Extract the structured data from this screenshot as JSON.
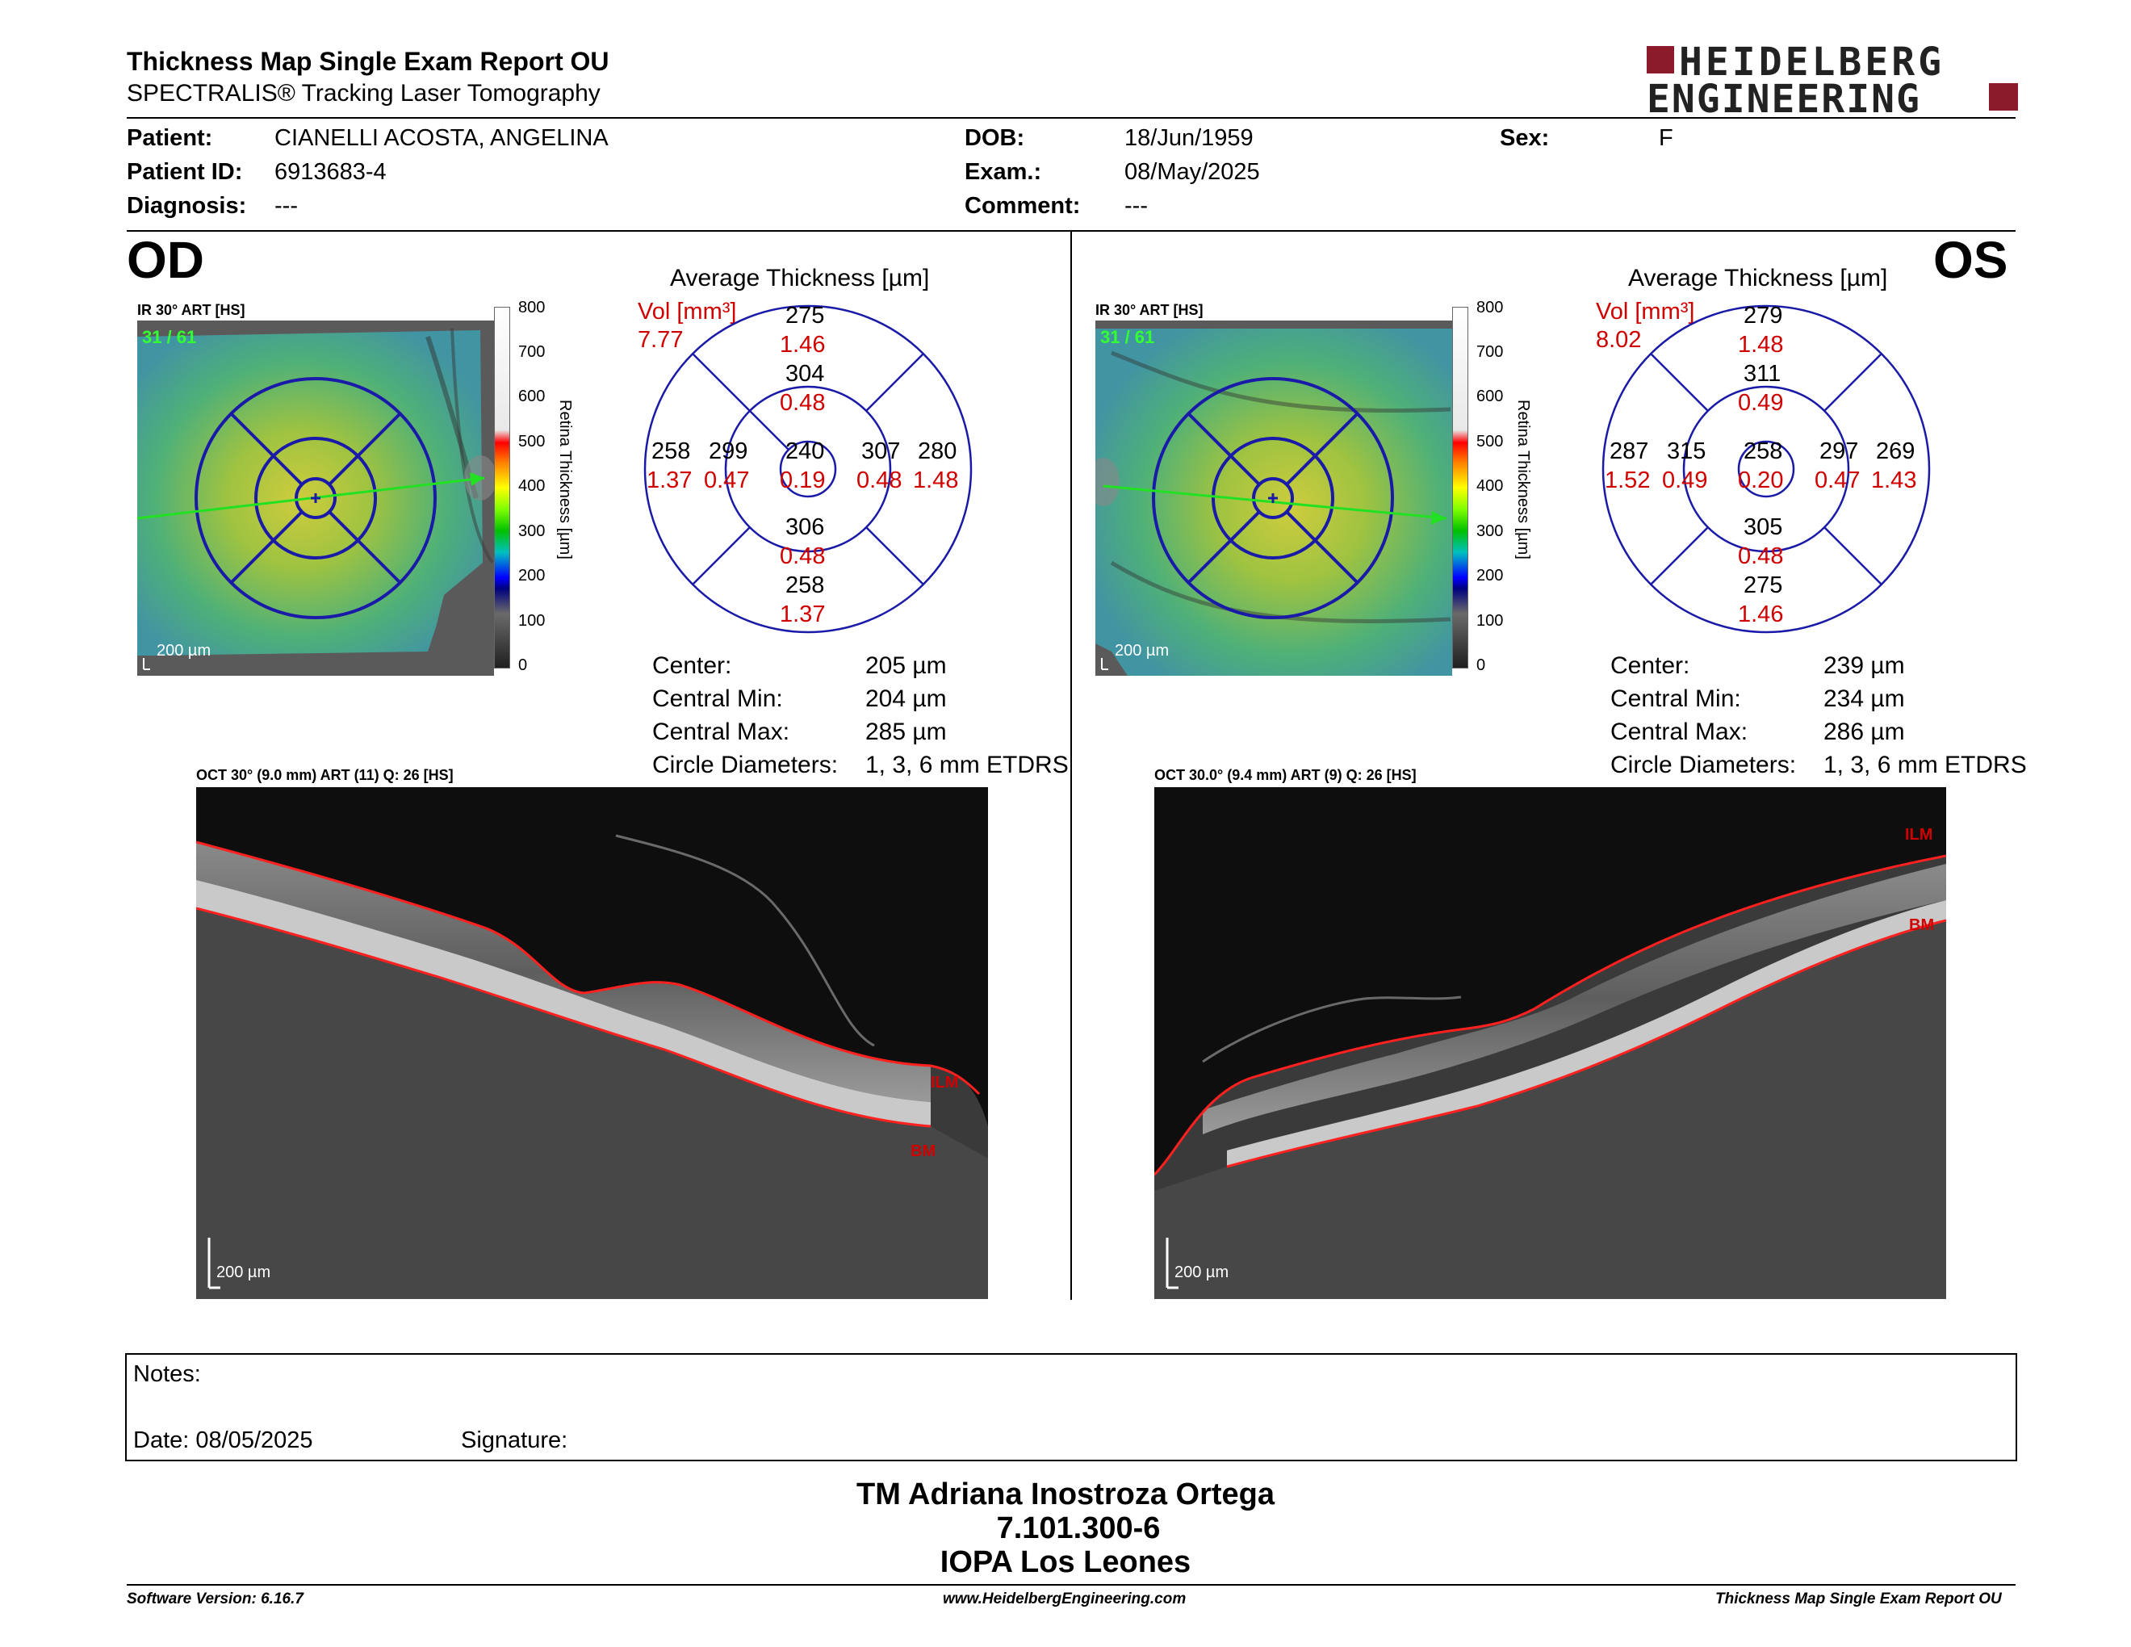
{
  "header": {
    "title": "Thickness Map Single Exam Report OU",
    "subtitle": "SPECTRALIS® Tracking Laser Tomography",
    "logo_line1": "HEIDELBERG",
    "logo_line2": "ENGINEERING",
    "brand_color": "#8b1a2b"
  },
  "patient": {
    "patient_label": "Patient:",
    "patient_value": "CIANELLI ACOSTA, ANGELINA",
    "id_label": "Patient ID:",
    "id_value": "6913683-4",
    "diagnosis_label": "Diagnosis:",
    "diagnosis_value": "---",
    "dob_label": "DOB:",
    "dob_value": "18/Jun/1959",
    "exam_label": "Exam.:",
    "exam_value": "08/May/2025",
    "comment_label": "Comment:",
    "comment_value": "---",
    "sex_label": "Sex:",
    "sex_value": "F"
  },
  "od": {
    "eye_label": "OD",
    "fundus_title": "IR 30° ART [HS]",
    "fundus_frames": "31 / 61",
    "fundus_scale": "200 µm",
    "colorbar_ticks": [
      "800",
      "700",
      "600",
      "500",
      "400",
      "300",
      "200",
      "100",
      "0"
    ],
    "colorbar_label": "Retina Thickness [µm]",
    "avg_title": "Average Thickness [µm]",
    "vol_label": "Vol [mm³]",
    "vol_value": "7.77",
    "etdrs": {
      "center": {
        "t": "240",
        "v": "0.19"
      },
      "inner_sup": {
        "t": "304",
        "v": "0.48"
      },
      "inner_inf": {
        "t": "306",
        "v": "0.48"
      },
      "inner_left": {
        "t": "299",
        "v": "0.47"
      },
      "inner_right": {
        "t": "307",
        "v": "0.48"
      },
      "outer_sup": {
        "t": "275",
        "v": "1.46"
      },
      "outer_inf": {
        "t": "258",
        "v": "1.37"
      },
      "outer_left": {
        "t": "258",
        "v": "1.37"
      },
      "outer_right": {
        "t": "280",
        "v": "1.48"
      }
    },
    "stats": [
      {
        "label": "Center:",
        "value": "205 µm"
      },
      {
        "label": "Central Min:",
        "value": "204 µm"
      },
      {
        "label": "Central Max:",
        "value": "285 µm"
      },
      {
        "label": "Circle Diameters:",
        "value": "1, 3, 6 mm ETDRS"
      }
    ],
    "oct_title": "OCT 30° (9.0 mm) ART (11) Q: 26 [HS]",
    "oct_scale": "200 µm",
    "ilm": "ILM",
    "bm": "BM"
  },
  "os": {
    "eye_label": "OS",
    "fundus_title": "IR 30° ART [HS]",
    "fundus_frames": "31 / 61",
    "fundus_scale": "200 µm",
    "colorbar_ticks": [
      "800",
      "700",
      "600",
      "500",
      "400",
      "300",
      "200",
      "100",
      "0"
    ],
    "colorbar_label": "Retina Thickness [µm]",
    "avg_title": "Average Thickness [µm]",
    "vol_label": "Vol [mm³]",
    "vol_value": "8.02",
    "etdrs": {
      "center": {
        "t": "258",
        "v": "0.20"
      },
      "inner_sup": {
        "t": "311",
        "v": "0.49"
      },
      "inner_inf": {
        "t": "305",
        "v": "0.48"
      },
      "inner_left": {
        "t": "315",
        "v": "0.49"
      },
      "inner_right": {
        "t": "297",
        "v": "0.47"
      },
      "outer_sup": {
        "t": "279",
        "v": "1.48"
      },
      "outer_inf": {
        "t": "275",
        "v": "1.46"
      },
      "outer_left": {
        "t": "287",
        "v": "1.52"
      },
      "outer_right": {
        "t": "269",
        "v": "1.43"
      }
    },
    "stats": [
      {
        "label": "Center:",
        "value": "239 µm"
      },
      {
        "label": "Central Min:",
        "value": "234 µm"
      },
      {
        "label": "Central Max:",
        "value": "286 µm"
      },
      {
        "label": "Circle Diameters:",
        "value": "1, 3, 6 mm ETDRS"
      }
    ],
    "oct_title": "OCT 30.0° (9.4 mm) ART (9) Q: 26 [HS]",
    "oct_scale": "200 µm",
    "ilm": "ILM",
    "bm": "BM"
  },
  "notes": {
    "notes_label": "Notes:",
    "date_label": "Date: 08/05/2025",
    "signature_label": "Signature:"
  },
  "signatory": {
    "name": "TM Adriana Inostroza Ortega",
    "rut": "7.101.300-6",
    "place": "IOPA Los Leones"
  },
  "footer": {
    "software": "Software Version: 6.16.7",
    "website": "www.HeidelbergEngineering.com",
    "report": "Thickness Map Single Exam Report OU"
  }
}
